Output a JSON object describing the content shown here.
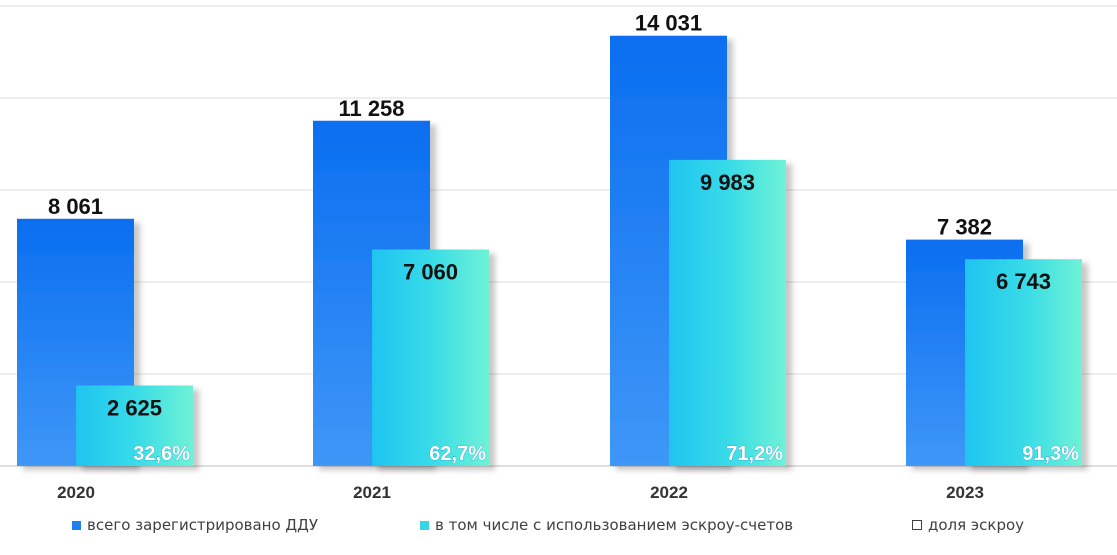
{
  "chart_data": {
    "type": "bar",
    "categories": [
      "2020",
      "2021",
      "2022",
      "2023"
    ],
    "series": [
      {
        "name": "всего зарегистрировано ДДУ",
        "values": [
          8061,
          11258,
          14031,
          7382
        ],
        "labels": [
          "8 061",
          "11 258",
          "14 031",
          "7 382"
        ],
        "color": "#1e7ff0"
      },
      {
        "name": "в том числе с использованием эскроу-счетов",
        "values": [
          2625,
          7060,
          9983,
          6743
        ],
        "labels": [
          "2 625",
          "7 060",
          "9 983",
          "6 743"
        ],
        "color": "#35d6e6"
      },
      {
        "name": "доля эскроу",
        "values": [
          32.6,
          62.7,
          71.2,
          91.3
        ],
        "labels": [
          "32,6%",
          "62,7%",
          "71,2%",
          "91,3%"
        ],
        "color": "#ffffff"
      }
    ],
    "ylim": [
      0,
      15000
    ],
    "grid": true,
    "legend_position": "bottom"
  }
}
